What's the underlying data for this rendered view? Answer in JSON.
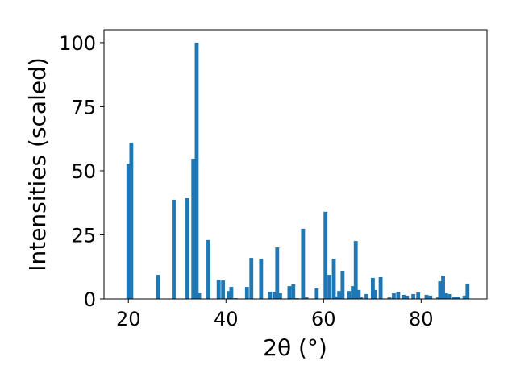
{
  "chart_data": {
    "type": "bar",
    "title": "",
    "xlabel": "2θ (°)",
    "ylabel": "Intensities (scaled)",
    "xlim": [
      15.0,
      93.5
    ],
    "ylim": [
      0,
      105
    ],
    "xticks": [
      20,
      40,
      60,
      80
    ],
    "yticks": [
      0,
      25,
      50,
      75,
      100
    ],
    "grid": false,
    "bar_width": 0.8,
    "color": "#1f77b4",
    "x": [
      20.0,
      20.6,
      26.1,
      29.3,
      32.1,
      33.3,
      34.0,
      34.5,
      36.4,
      38.5,
      39.4,
      40.6,
      41.1,
      42.0,
      44.3,
      45.2,
      47.2,
      49.0,
      49.9,
      50.5,
      51.1,
      53.0,
      53.8,
      54.6,
      55.8,
      56.5,
      58.6,
      60.4,
      61.2,
      62.1,
      62.6,
      63.2,
      63.9,
      65.2,
      66.0,
      66.6,
      67.2,
      67.7,
      68.8,
      70.1,
      70.5,
      71.7,
      73.5,
      74.4,
      75.3,
      76.4,
      77.1,
      78.4,
      79.4,
      81.1,
      81.9,
      83.5,
      83.9,
      84.5,
      85.1,
      85.9,
      86.8,
      87.6,
      88.9,
      89.5
    ],
    "values": [
      52.8,
      61.0,
      9.4,
      38.7,
      39.3,
      54.7,
      100.0,
      2.2,
      23.0,
      7.5,
      7.2,
      3.1,
      4.7,
      0.3,
      4.7,
      16.0,
      15.7,
      2.8,
      2.8,
      20.1,
      2.2,
      5.0,
      5.7,
      0.3,
      27.4,
      0.6,
      4.1,
      34.0,
      9.4,
      15.7,
      1.0,
      3.1,
      11.0,
      3.1,
      5.0,
      22.6,
      3.5,
      0.6,
      1.9,
      8.2,
      3.5,
      8.5,
      0.6,
      2.2,
      2.8,
      1.6,
      1.3,
      1.9,
      2.5,
      1.6,
      1.3,
      0.6,
      6.9,
      9.1,
      2.2,
      1.9,
      0.9,
      0.9,
      1.3,
      6.0
    ]
  }
}
